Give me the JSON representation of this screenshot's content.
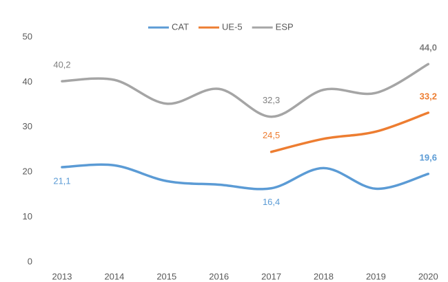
{
  "chart_data": {
    "type": "line",
    "categories": [
      "2013",
      "2014",
      "2015",
      "2016",
      "2017",
      "2018",
      "2019",
      "2020"
    ],
    "series": [
      {
        "name": "CAT",
        "color": "#5b9bd5",
        "values": [
          21.1,
          21.5,
          18.0,
          17.2,
          16.4,
          20.9,
          16.3,
          19.6
        ],
        "value_labels": [
          "21,1",
          null,
          null,
          null,
          "16,4",
          null,
          null,
          "19,6"
        ]
      },
      {
        "name": "UE-5",
        "color": "#ed7d31",
        "values": [
          null,
          null,
          null,
          null,
          24.5,
          27.4,
          29.0,
          33.2
        ],
        "value_labels": [
          null,
          null,
          null,
          null,
          "24,5",
          null,
          null,
          "33,2"
        ]
      },
      {
        "name": "ESP",
        "color": "#a5a5a5",
        "values": [
          40.2,
          40.5,
          35.2,
          38.5,
          32.3,
          38.3,
          37.6,
          44.0
        ],
        "value_labels": [
          "40,2",
          null,
          null,
          null,
          "32,3",
          null,
          null,
          "44,0"
        ]
      }
    ],
    "ylim": [
      0,
      50
    ],
    "yticks": [
      0,
      10,
      20,
      30,
      40,
      50
    ],
    "grid": false,
    "legend": "top"
  }
}
